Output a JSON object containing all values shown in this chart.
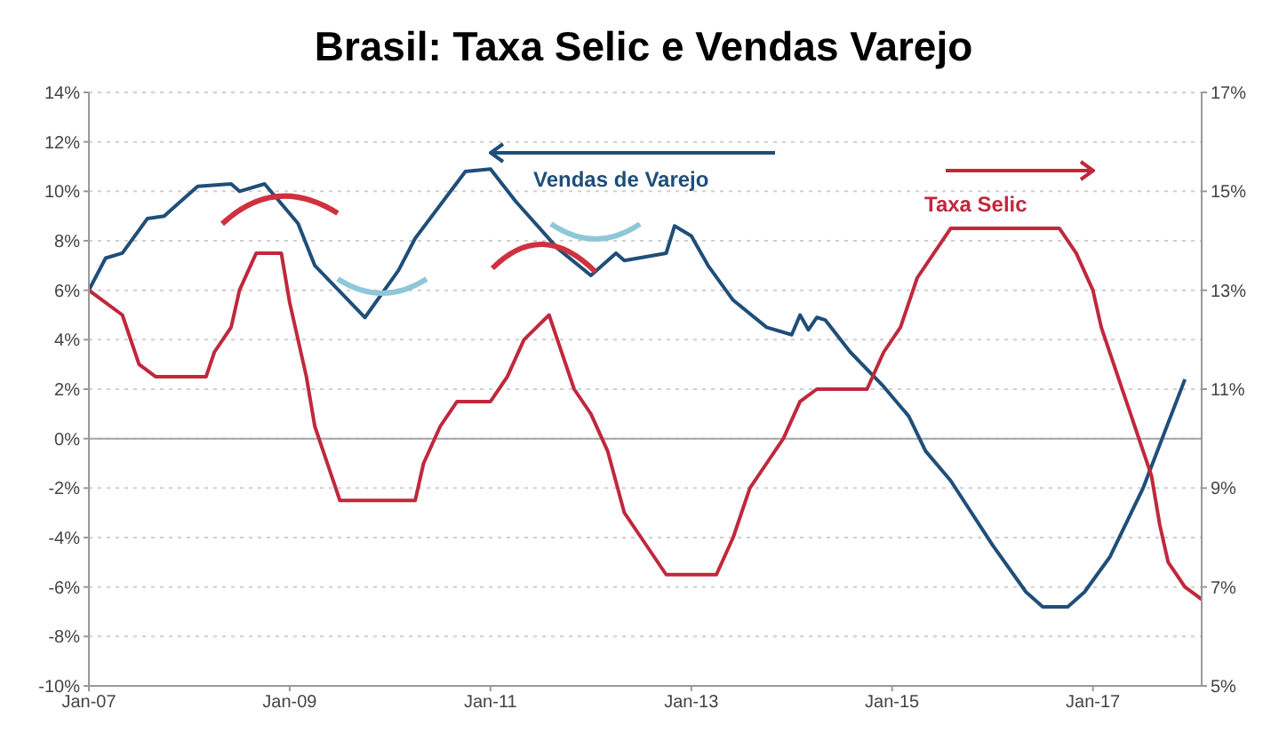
{
  "chart_data": {
    "type": "line",
    "title": "Brasil: Taxa Selic e Vendas Varejo",
    "grid": "y",
    "legend": false,
    "xlim": [
      "2007-01",
      "2018-02"
    ],
    "xticks": [
      {
        "value": "2007-01",
        "label": "Jan-07"
      },
      {
        "value": "2009-01",
        "label": "Jan-09"
      },
      {
        "value": "2011-01",
        "label": "Jan-11"
      },
      {
        "value": "2013-01",
        "label": "Jan-13"
      },
      {
        "value": "2015-01",
        "label": "Jan-15"
      },
      {
        "value": "2017-01",
        "label": "Jan-17"
      }
    ],
    "ylim": [
      -10,
      14
    ],
    "yticks": [
      {
        "value": -10,
        "label": "-10%"
      },
      {
        "value": -8,
        "label": "-8%"
      },
      {
        "value": -6,
        "label": "-6%"
      },
      {
        "value": -4,
        "label": "-4%"
      },
      {
        "value": -2,
        "label": "-2%"
      },
      {
        "value": 0,
        "label": "0%"
      },
      {
        "value": 2,
        "label": "2%"
      },
      {
        "value": 4,
        "label": "4%"
      },
      {
        "value": 6,
        "label": "6%"
      },
      {
        "value": 8,
        "label": "8%"
      },
      {
        "value": 10,
        "label": "10%"
      },
      {
        "value": 12,
        "label": "12%"
      },
      {
        "value": 14,
        "label": "14%"
      }
    ],
    "y2lim": [
      5,
      17
    ],
    "y2ticks": [
      {
        "value": 5,
        "label": "5%"
      },
      {
        "value": 7,
        "label": "7%"
      },
      {
        "value": 9,
        "label": "9%"
      },
      {
        "value": 11,
        "label": "11%"
      },
      {
        "value": 13,
        "label": "13%"
      },
      {
        "value": 15,
        "label": "15%"
      },
      {
        "value": 17,
        "label": "17%"
      }
    ],
    "ref_lines": [
      {
        "axis": "y",
        "value": 0,
        "color": "#a6a6a6"
      }
    ],
    "series": [
      {
        "name": "Vendas de Varejo",
        "color": "#1f4e79",
        "x": [
          "2007-01",
          "2007-03",
          "2007-05",
          "2007-08",
          "2007-10",
          "2007-11",
          "2008-02",
          "2008-06",
          "2008-07",
          "2008-10",
          "2009-02",
          "2009-04",
          "2009-10",
          "2010-02",
          "2010-04",
          "2010-10",
          "2011-01",
          "2011-04",
          "2011-09",
          "2012-01",
          "2012-04",
          "2012-05",
          "2012-10",
          "2012-11",
          "2013-01",
          "2013-03",
          "2013-06",
          "2013-10",
          "2014-01",
          "2014-02",
          "2014-03",
          "2014-04",
          "2014-05",
          "2014-08",
          "2014-12",
          "2015-03",
          "2015-05",
          "2015-08",
          "2016-01",
          "2016-05",
          "2016-07",
          "2016-10",
          "2016-12",
          "2017-03",
          "2017-07",
          "2017-12"
        ],
        "values": [
          6.0,
          7.3,
          7.5,
          8.9,
          9.0,
          9.3,
          10.2,
          10.3,
          10.0,
          10.3,
          8.7,
          7.0,
          4.9,
          6.8,
          8.1,
          10.8,
          10.9,
          9.6,
          7.7,
          6.6,
          7.5,
          7.2,
          7.5,
          8.6,
          8.2,
          7.0,
          5.6,
          4.5,
          4.2,
          5.0,
          4.4,
          4.9,
          4.8,
          3.5,
          2.1,
          0.9,
          -0.5,
          -1.7,
          -4.3,
          -6.2,
          -6.8,
          -6.8,
          -6.2,
          -4.8,
          -2.0,
          2.4
        ]
      },
      {
        "name": "Taxa Selic",
        "color": "#c0283c",
        "axis": "y2",
        "x": [
          "2007-01",
          "2007-03",
          "2007-05",
          "2007-07",
          "2007-09",
          "2008-03",
          "2008-04",
          "2008-06",
          "2008-07",
          "2008-09",
          "2008-12",
          "2009-01",
          "2009-03",
          "2009-04",
          "2009-06",
          "2009-07",
          "2010-04",
          "2010-05",
          "2010-07",
          "2010-09",
          "2011-01",
          "2011-03",
          "2011-05",
          "2011-08",
          "2011-09",
          "2011-11",
          "2012-01",
          "2012-03",
          "2012-05",
          "2012-07",
          "2012-10",
          "2013-04",
          "2013-06",
          "2013-08",
          "2013-10",
          "2013-12",
          "2014-02",
          "2014-04",
          "2014-10",
          "2014-12",
          "2015-02",
          "2015-04",
          "2015-06",
          "2015-08",
          "2016-09",
          "2016-11",
          "2017-01",
          "2017-02",
          "2017-04",
          "2017-06",
          "2017-08",
          "2017-09",
          "2017-10",
          "2017-12",
          "2018-02"
        ],
        "values": [
          13.0,
          12.75,
          12.5,
          11.5,
          11.25,
          11.25,
          11.75,
          12.25,
          13.0,
          13.75,
          13.75,
          12.75,
          11.25,
          10.25,
          9.25,
          8.75,
          8.75,
          9.5,
          10.25,
          10.75,
          10.75,
          11.25,
          12.0,
          12.5,
          12.0,
          11.0,
          10.5,
          9.75,
          8.5,
          8.0,
          7.25,
          7.25,
          8.0,
          9.0,
          9.5,
          10.0,
          10.75,
          11.0,
          11.0,
          11.75,
          12.25,
          13.25,
          13.75,
          14.25,
          14.25,
          13.75,
          13.0,
          12.25,
          11.25,
          10.25,
          9.25,
          8.25,
          7.5,
          7.0,
          6.75
        ]
      }
    ]
  }
}
